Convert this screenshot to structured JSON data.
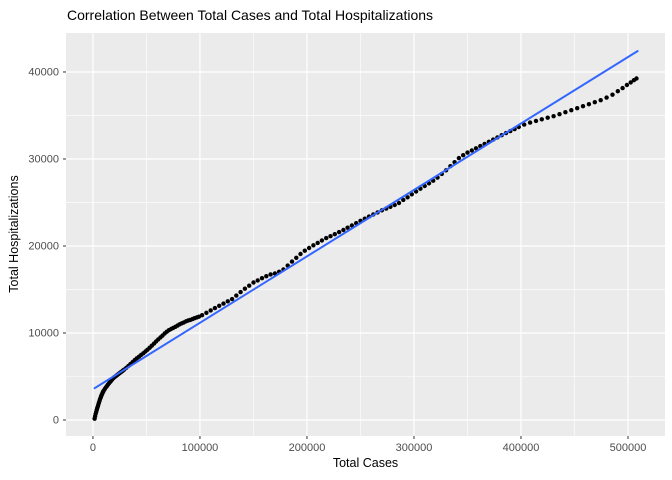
{
  "chart_data": {
    "type": "scatter",
    "title": "Correlation Between Total Cases and Total Hospitalizations",
    "xlabel": "Total Cases",
    "ylabel": "Total Hospitalizations",
    "xlim": [
      -25200,
      534600
    ],
    "ylim": [
      -1840,
      44480
    ],
    "grid": "on",
    "legend": "none",
    "x_ticks": {
      "values": [
        0,
        100000,
        200000,
        300000,
        400000,
        500000
      ],
      "labels": [
        "0",
        "100000",
        "200000",
        "300000",
        "400000",
        "500000"
      ]
    },
    "y_ticks": {
      "values": [
        0,
        10000,
        20000,
        30000,
        40000
      ],
      "labels": [
        "0",
        "10000",
        "20000",
        "30000",
        "40000"
      ]
    },
    "x_minor": [
      50000,
      150000,
      250000,
      350000,
      450000
    ],
    "y_minor": [
      5000,
      15000,
      25000,
      35000
    ],
    "theme": {
      "panel_bg": "#EBEBEB",
      "grid_color": "#FFFFFF",
      "point_color": "#000000",
      "line_color": "#3366FF",
      "tick_label_color": "#4D4D4D",
      "tick_mark_color": "#333333",
      "title_color": "#000000"
    },
    "series": [
      {
        "name": "observations",
        "kind": "points",
        "points": [
          [
            1500,
            150
          ],
          [
            2000,
            430
          ],
          [
            2500,
            700
          ],
          [
            3000,
            930
          ],
          [
            3500,
            1150
          ],
          [
            4000,
            1350
          ],
          [
            4500,
            1550
          ],
          [
            5000,
            1750
          ],
          [
            5500,
            1950
          ],
          [
            6000,
            2150
          ],
          [
            6500,
            2350
          ],
          [
            7000,
            2520
          ],
          [
            7500,
            2690
          ],
          [
            8000,
            2850
          ],
          [
            8500,
            2990
          ],
          [
            9000,
            3120
          ],
          [
            9500,
            3250
          ],
          [
            10000,
            3350
          ],
          [
            11000,
            3550
          ],
          [
            12000,
            3730
          ],
          [
            13000,
            3900
          ],
          [
            14000,
            4060
          ],
          [
            15000,
            4220
          ],
          [
            16000,
            4370
          ],
          [
            17000,
            4520
          ],
          [
            18000,
            4660
          ],
          [
            19000,
            4800
          ],
          [
            20000,
            4930
          ],
          [
            21000,
            5000
          ],
          [
            22000,
            5100
          ],
          [
            23000,
            5200
          ],
          [
            24000,
            5300
          ],
          [
            25000,
            5390
          ],
          [
            26000,
            5490
          ],
          [
            27000,
            5580
          ],
          [
            28000,
            5680
          ],
          [
            29000,
            5780
          ],
          [
            31000,
            5980
          ],
          [
            33000,
            6190
          ],
          [
            35000,
            6420
          ],
          [
            37000,
            6650
          ],
          [
            39000,
            6880
          ],
          [
            41000,
            7090
          ],
          [
            43000,
            7280
          ],
          [
            45000,
            7480
          ],
          [
            47000,
            7670
          ],
          [
            49000,
            7870
          ],
          [
            51000,
            8080
          ],
          [
            53000,
            8310
          ],
          [
            55000,
            8540
          ],
          [
            57000,
            8780
          ],
          [
            59000,
            9030
          ],
          [
            61000,
            9260
          ],
          [
            63000,
            9480
          ],
          [
            65000,
            9700
          ],
          [
            67000,
            9950
          ],
          [
            69000,
            10150
          ],
          [
            71000,
            10320
          ],
          [
            73000,
            10460
          ],
          [
            75000,
            10580
          ],
          [
            77000,
            10710
          ],
          [
            79000,
            10850
          ],
          [
            81000,
            11000
          ],
          [
            83000,
            11110
          ],
          [
            85000,
            11220
          ],
          [
            87000,
            11340
          ],
          [
            89000,
            11430
          ],
          [
            91000,
            11510
          ],
          [
            93000,
            11600
          ],
          [
            95000,
            11700
          ],
          [
            97000,
            11790
          ],
          [
            99000,
            11870
          ],
          [
            102000,
            12040
          ],
          [
            106000,
            12320
          ],
          [
            110000,
            12600
          ],
          [
            114000,
            12860
          ],
          [
            118000,
            13120
          ],
          [
            122000,
            13380
          ],
          [
            126000,
            13640
          ],
          [
            130000,
            13900
          ],
          [
            134000,
            14300
          ],
          [
            138000,
            14700
          ],
          [
            142000,
            15090
          ],
          [
            146000,
            15440
          ],
          [
            150000,
            15800
          ],
          [
            154000,
            16050
          ],
          [
            158000,
            16300
          ],
          [
            162000,
            16530
          ],
          [
            166000,
            16730
          ],
          [
            170000,
            16840
          ],
          [
            174000,
            17030
          ],
          [
            178000,
            17300
          ],
          [
            182000,
            17750
          ],
          [
            186000,
            18200
          ],
          [
            190000,
            18640
          ],
          [
            194000,
            19080
          ],
          [
            198000,
            19460
          ],
          [
            202000,
            19770
          ],
          [
            206000,
            20080
          ],
          [
            210000,
            20350
          ],
          [
            214000,
            20630
          ],
          [
            218000,
            20910
          ],
          [
            222000,
            21120
          ],
          [
            226000,
            21360
          ],
          [
            230000,
            21600
          ],
          [
            234000,
            21840
          ],
          [
            238000,
            22100
          ],
          [
            242000,
            22360
          ],
          [
            246000,
            22620
          ],
          [
            250000,
            22900
          ],
          [
            254000,
            23140
          ],
          [
            258000,
            23380
          ],
          [
            262000,
            23620
          ],
          [
            266000,
            23860
          ],
          [
            270000,
            24100
          ],
          [
            274000,
            24300
          ],
          [
            278000,
            24500
          ],
          [
            282000,
            24710
          ],
          [
            286000,
            24940
          ],
          [
            290000,
            25300
          ],
          [
            294000,
            25600
          ],
          [
            298000,
            25940
          ],
          [
            302000,
            26260
          ],
          [
            306000,
            26580
          ],
          [
            310000,
            26900
          ],
          [
            314000,
            27200
          ],
          [
            318000,
            27500
          ],
          [
            322000,
            27860
          ],
          [
            326000,
            28280
          ],
          [
            330000,
            28700
          ],
          [
            334000,
            29170
          ],
          [
            338000,
            29630
          ],
          [
            342000,
            30100
          ],
          [
            346000,
            30430
          ],
          [
            350000,
            30730
          ],
          [
            354000,
            30980
          ],
          [
            358000,
            31230
          ],
          [
            362000,
            31480
          ],
          [
            366000,
            31730
          ],
          [
            370000,
            31980
          ],
          [
            374000,
            32230
          ],
          [
            378000,
            32480
          ],
          [
            382000,
            32730
          ],
          [
            386000,
            32980
          ],
          [
            390000,
            33210
          ],
          [
            394000,
            33440
          ],
          [
            398000,
            33680
          ],
          [
            403000,
            33950
          ],
          [
            408500,
            34180
          ],
          [
            414000,
            34380
          ],
          [
            419500,
            34560
          ],
          [
            425000,
            34740
          ],
          [
            430500,
            34920
          ],
          [
            436000,
            35150
          ],
          [
            441500,
            35380
          ],
          [
            447000,
            35610
          ],
          [
            452500,
            35840
          ],
          [
            458000,
            36070
          ],
          [
            463500,
            36300
          ],
          [
            469000,
            36530
          ],
          [
            474500,
            36760
          ],
          [
            480000,
            37050
          ],
          [
            485500,
            37390
          ],
          [
            490500,
            37790
          ],
          [
            495000,
            38150
          ],
          [
            499000,
            38500
          ],
          [
            502500,
            38800
          ],
          [
            505500,
            39050
          ],
          [
            508000,
            39250
          ]
        ]
      },
      {
        "name": "linear-fit",
        "kind": "line",
        "points": [
          [
            1500,
            3650
          ],
          [
            509000,
            42400
          ]
        ]
      }
    ]
  }
}
